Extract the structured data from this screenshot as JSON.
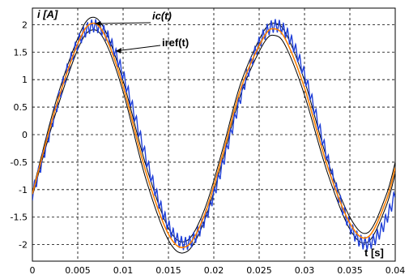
{
  "chart_data": {
    "type": "line",
    "xlabel": "t [s]",
    "ylabel": "i [A]",
    "xlim": [
      0,
      0.04
    ],
    "ylim": [
      -2.3,
      2.3
    ],
    "x_ticks": [
      0,
      0.005,
      0.01,
      0.015,
      0.02,
      0.025,
      0.03,
      0.035,
      0.04
    ],
    "x_tick_labels": [
      "0",
      "0.005",
      "0.01",
      "0.015",
      "0.02",
      "0.025",
      "0.03",
      "0.035",
      "0.04"
    ],
    "y_ticks": [
      -2,
      -1.5,
      -1,
      -0.5,
      0,
      0.5,
      1,
      1.5,
      2
    ],
    "y_tick_labels": [
      "-2",
      "-1.5",
      "-1",
      "-0.5",
      "0",
      "0.5",
      "1",
      "1.5",
      "2"
    ],
    "grid": true,
    "annotations": [
      {
        "text": "ic(t)",
        "x": 0.0069,
        "y": 2.02
      },
      {
        "text": "iref(t)",
        "x": 0.0092,
        "y": 1.52
      }
    ],
    "series": [
      {
        "color": "#000000",
        "role": "band upper",
        "x": [
          0,
          0.0025,
          0.005,
          0.0065,
          0.008,
          0.01,
          0.0125,
          0.015,
          0.017,
          0.019,
          0.021,
          0.023,
          0.0255,
          0.0268,
          0.028,
          0.03,
          0.0325,
          0.035,
          0.037,
          0.039,
          0.04
        ],
        "y": [
          -1.05,
          0.55,
          1.75,
          2.13,
          1.9,
          0.98,
          -0.55,
          -1.7,
          -1.93,
          -1.35,
          -0.25,
          0.95,
          1.88,
          2.02,
          1.82,
          0.98,
          -0.45,
          -1.5,
          -1.78,
          -1.1,
          -0.5
        ]
      },
      {
        "color": "#000000",
        "role": "band lower",
        "x": [
          0,
          0.0025,
          0.005,
          0.0065,
          0.008,
          0.01,
          0.0125,
          0.015,
          0.017,
          0.019,
          0.021,
          0.023,
          0.0255,
          0.0268,
          0.028,
          0.03,
          0.0325,
          0.035,
          0.037,
          0.039,
          0.04
        ],
        "y": [
          -1.12,
          0.35,
          1.55,
          1.9,
          1.7,
          0.78,
          -0.8,
          -1.92,
          -2.13,
          -1.55,
          -0.45,
          0.75,
          1.66,
          1.8,
          1.58,
          0.72,
          -0.68,
          -1.72,
          -1.95,
          -1.3,
          -0.7
        ]
      },
      {
        "name": "iref(t)",
        "color": "#ff7f00",
        "x": [
          0,
          0.0025,
          0.005,
          0.0065,
          0.008,
          0.01,
          0.0125,
          0.015,
          0.017,
          0.019,
          0.021,
          0.023,
          0.0255,
          0.0268,
          0.028,
          0.03,
          0.0325,
          0.035,
          0.037,
          0.039,
          0.04
        ],
        "y": [
          -1.08,
          0.45,
          1.65,
          2.02,
          1.8,
          0.88,
          -0.67,
          -1.81,
          -2.03,
          -1.45,
          -0.35,
          0.85,
          1.77,
          1.92,
          1.7,
          0.85,
          -0.56,
          -1.61,
          -1.86,
          -1.2,
          -0.6
        ]
      }
    ],
    "ic_waveform": {
      "name": "ic(t)",
      "color": "#1f3fd8",
      "amplitude": 1.98,
      "offset": 0.0,
      "frequency_hz": 50,
      "phase_deg": -33,
      "ripple_amplitude": 0.12,
      "ripple_period": 0.00045
    }
  }
}
